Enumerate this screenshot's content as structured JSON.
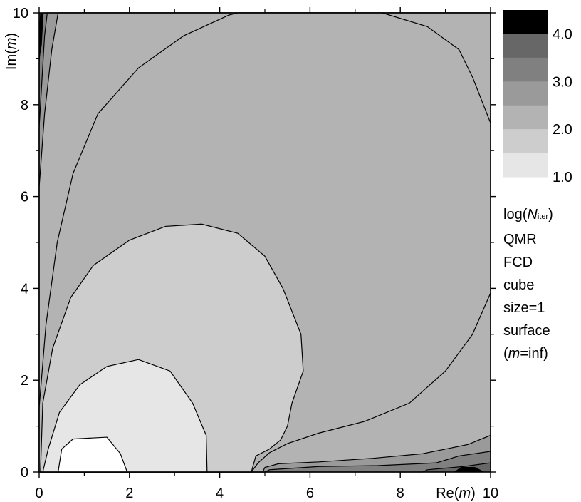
{
  "chart_data": {
    "type": "heatmap",
    "title": "",
    "xlabel": {
      "prefix": "Re(",
      "var": "m",
      "suffix": ")"
    },
    "ylabel": {
      "prefix": "Im(",
      "var": "m",
      "suffix": ")"
    },
    "xlim": [
      0,
      10
    ],
    "ylim": [
      0,
      10
    ],
    "xticks": [
      0,
      2,
      4,
      6,
      8,
      10
    ],
    "yticks": [
      0,
      2,
      4,
      6,
      8,
      10
    ],
    "xticks_labels": [
      "0",
      "2",
      "4",
      "6",
      "8",
      "10"
    ],
    "yticks_labels": [
      "0",
      "2",
      "4",
      "6",
      "8",
      "10"
    ],
    "grid": false,
    "colorbar": {
      "levels": [
        1.0,
        1.5,
        2.0,
        2.5,
        3.0,
        3.5,
        4.0,
        4.5
      ],
      "colors": [
        "#e6e6e6",
        "#cdcdcd",
        "#b3b3b3",
        "#9a9a9a",
        "#808080",
        "#676767",
        "#000000"
      ],
      "tick_labels": [
        "1.0",
        "2.0",
        "3.0",
        "4.0"
      ],
      "title": {
        "prefix": "log(",
        "var": "N",
        "sub": "iter",
        "suffix": ")"
      }
    },
    "annotations": [
      "QMR",
      "FCD",
      "cube",
      "size=1",
      "surface"
    ],
    "annotation_last": {
      "prefix": "(",
      "var": "m",
      "suffix": "=inf)"
    },
    "contours": [
      {
        "level": 1.0,
        "color": "#ffffff",
        "points": [
          [
            0.42,
            0
          ],
          [
            0.5,
            0.5
          ],
          [
            0.75,
            0.72
          ],
          [
            1.5,
            0.76
          ],
          [
            1.8,
            0.4
          ],
          [
            1.95,
            0
          ]
        ]
      },
      {
        "level": 1.5,
        "color": "#e6e6e6",
        "points": [
          [
            0.08,
            0
          ],
          [
            0.2,
            0.5
          ],
          [
            0.45,
            1.3
          ],
          [
            0.9,
            1.9
          ],
          [
            1.5,
            2.3
          ],
          [
            2.2,
            2.45
          ],
          [
            2.9,
            2.2
          ],
          [
            3.4,
            1.5
          ],
          [
            3.7,
            0.8
          ],
          [
            3.72,
            0
          ]
        ]
      },
      {
        "level": 2.0,
        "color": "#cdcdcd",
        "points": [
          [
            0.03,
            0
          ],
          [
            0.08,
            1.5
          ],
          [
            0.3,
            2.7
          ],
          [
            0.7,
            3.8
          ],
          [
            1.2,
            4.5
          ],
          [
            2.0,
            5.05
          ],
          [
            2.8,
            5.35
          ],
          [
            3.6,
            5.4
          ],
          [
            4.4,
            5.2
          ],
          [
            5.0,
            4.7
          ],
          [
            5.4,
            4.0
          ],
          [
            5.8,
            3.0
          ],
          [
            5.85,
            2.2
          ],
          [
            5.6,
            1.5
          ],
          [
            5.5,
            1.0
          ],
          [
            5.35,
            0.7
          ],
          [
            5.1,
            0.5
          ],
          [
            4.8,
            0.35
          ],
          [
            4.7,
            0
          ]
        ]
      },
      {
        "level": 2.5,
        "color": "#b3b3b3",
        "points": [
          [
            0,
            0
          ],
          [
            0,
            1.4
          ],
          [
            0.15,
            3.2
          ],
          [
            0.4,
            5.0
          ],
          [
            0.75,
            6.5
          ],
          [
            1.3,
            7.8
          ],
          [
            2.2,
            8.8
          ],
          [
            3.2,
            9.5
          ],
          [
            4.2,
            9.95
          ],
          [
            4.4,
            10
          ],
          [
            7.6,
            10
          ],
          [
            8.6,
            9.7
          ],
          [
            9.3,
            9.2
          ],
          [
            9.6,
            8.6
          ],
          [
            10,
            7.6
          ],
          [
            10,
            3.9
          ],
          [
            9.6,
            3.0
          ],
          [
            9.0,
            2.2
          ],
          [
            8.2,
            1.5
          ],
          [
            7.2,
            1.1
          ],
          [
            6.2,
            0.85
          ],
          [
            5.5,
            0.62
          ],
          [
            5.1,
            0.42
          ],
          [
            4.85,
            0.2
          ],
          [
            4.7,
            0
          ]
        ]
      },
      {
        "level": 3.0,
        "color": "#9a9a9a",
        "points": [
          [
            0,
            0
          ],
          [
            0,
            6.2
          ],
          [
            0.12,
            7.8
          ],
          [
            0.28,
            9.2
          ],
          [
            0.42,
            10
          ],
          [
            10,
            10
          ],
          [
            10,
            0.8
          ],
          [
            9.5,
            0.6
          ],
          [
            8.5,
            0.4
          ],
          [
            7.4,
            0.3
          ],
          [
            6.2,
            0.22
          ],
          [
            5.3,
            0.18
          ],
          [
            5.0,
            0.1
          ],
          [
            4.95,
            0
          ]
        ]
      },
      {
        "level": 3.5,
        "color": "#808080",
        "points": [
          [
            0,
            0
          ],
          [
            0,
            7.5
          ],
          [
            0.06,
            8.5
          ],
          [
            0.12,
            9.5
          ],
          [
            0.18,
            10
          ],
          [
            10,
            10
          ],
          [
            10,
            0.45
          ],
          [
            9.3,
            0.35
          ],
          [
            8.8,
            0.2
          ],
          [
            7.5,
            0.14
          ],
          [
            6.2,
            0.12
          ],
          [
            5.1,
            0.05
          ],
          [
            5.0,
            0
          ]
        ]
      },
      {
        "level": 4.0,
        "color": "#676767",
        "points": [
          [
            0,
            0
          ],
          [
            0,
            8.9
          ],
          [
            0.04,
            9.6
          ],
          [
            0.08,
            10
          ],
          [
            10,
            10
          ],
          [
            10,
            0.2
          ],
          [
            9.4,
            0.12
          ],
          [
            8.6,
            0.05
          ],
          [
            8.5,
            0
          ]
        ]
      },
      {
        "level": 4.5,
        "color": "#000000",
        "points": [
          [
            0,
            9.3
          ],
          [
            0.01,
            9.7
          ],
          [
            0.03,
            10
          ],
          [
            0.09,
            10
          ],
          [
            0.05,
            9.3
          ],
          [
            0,
            9.0
          ]
        ]
      },
      {
        "level": 4.5,
        "color": "#000000",
        "points": [
          [
            9.2,
            0
          ],
          [
            9.35,
            0.1
          ],
          [
            9.65,
            0.1
          ],
          [
            9.85,
            0
          ]
        ]
      }
    ]
  }
}
